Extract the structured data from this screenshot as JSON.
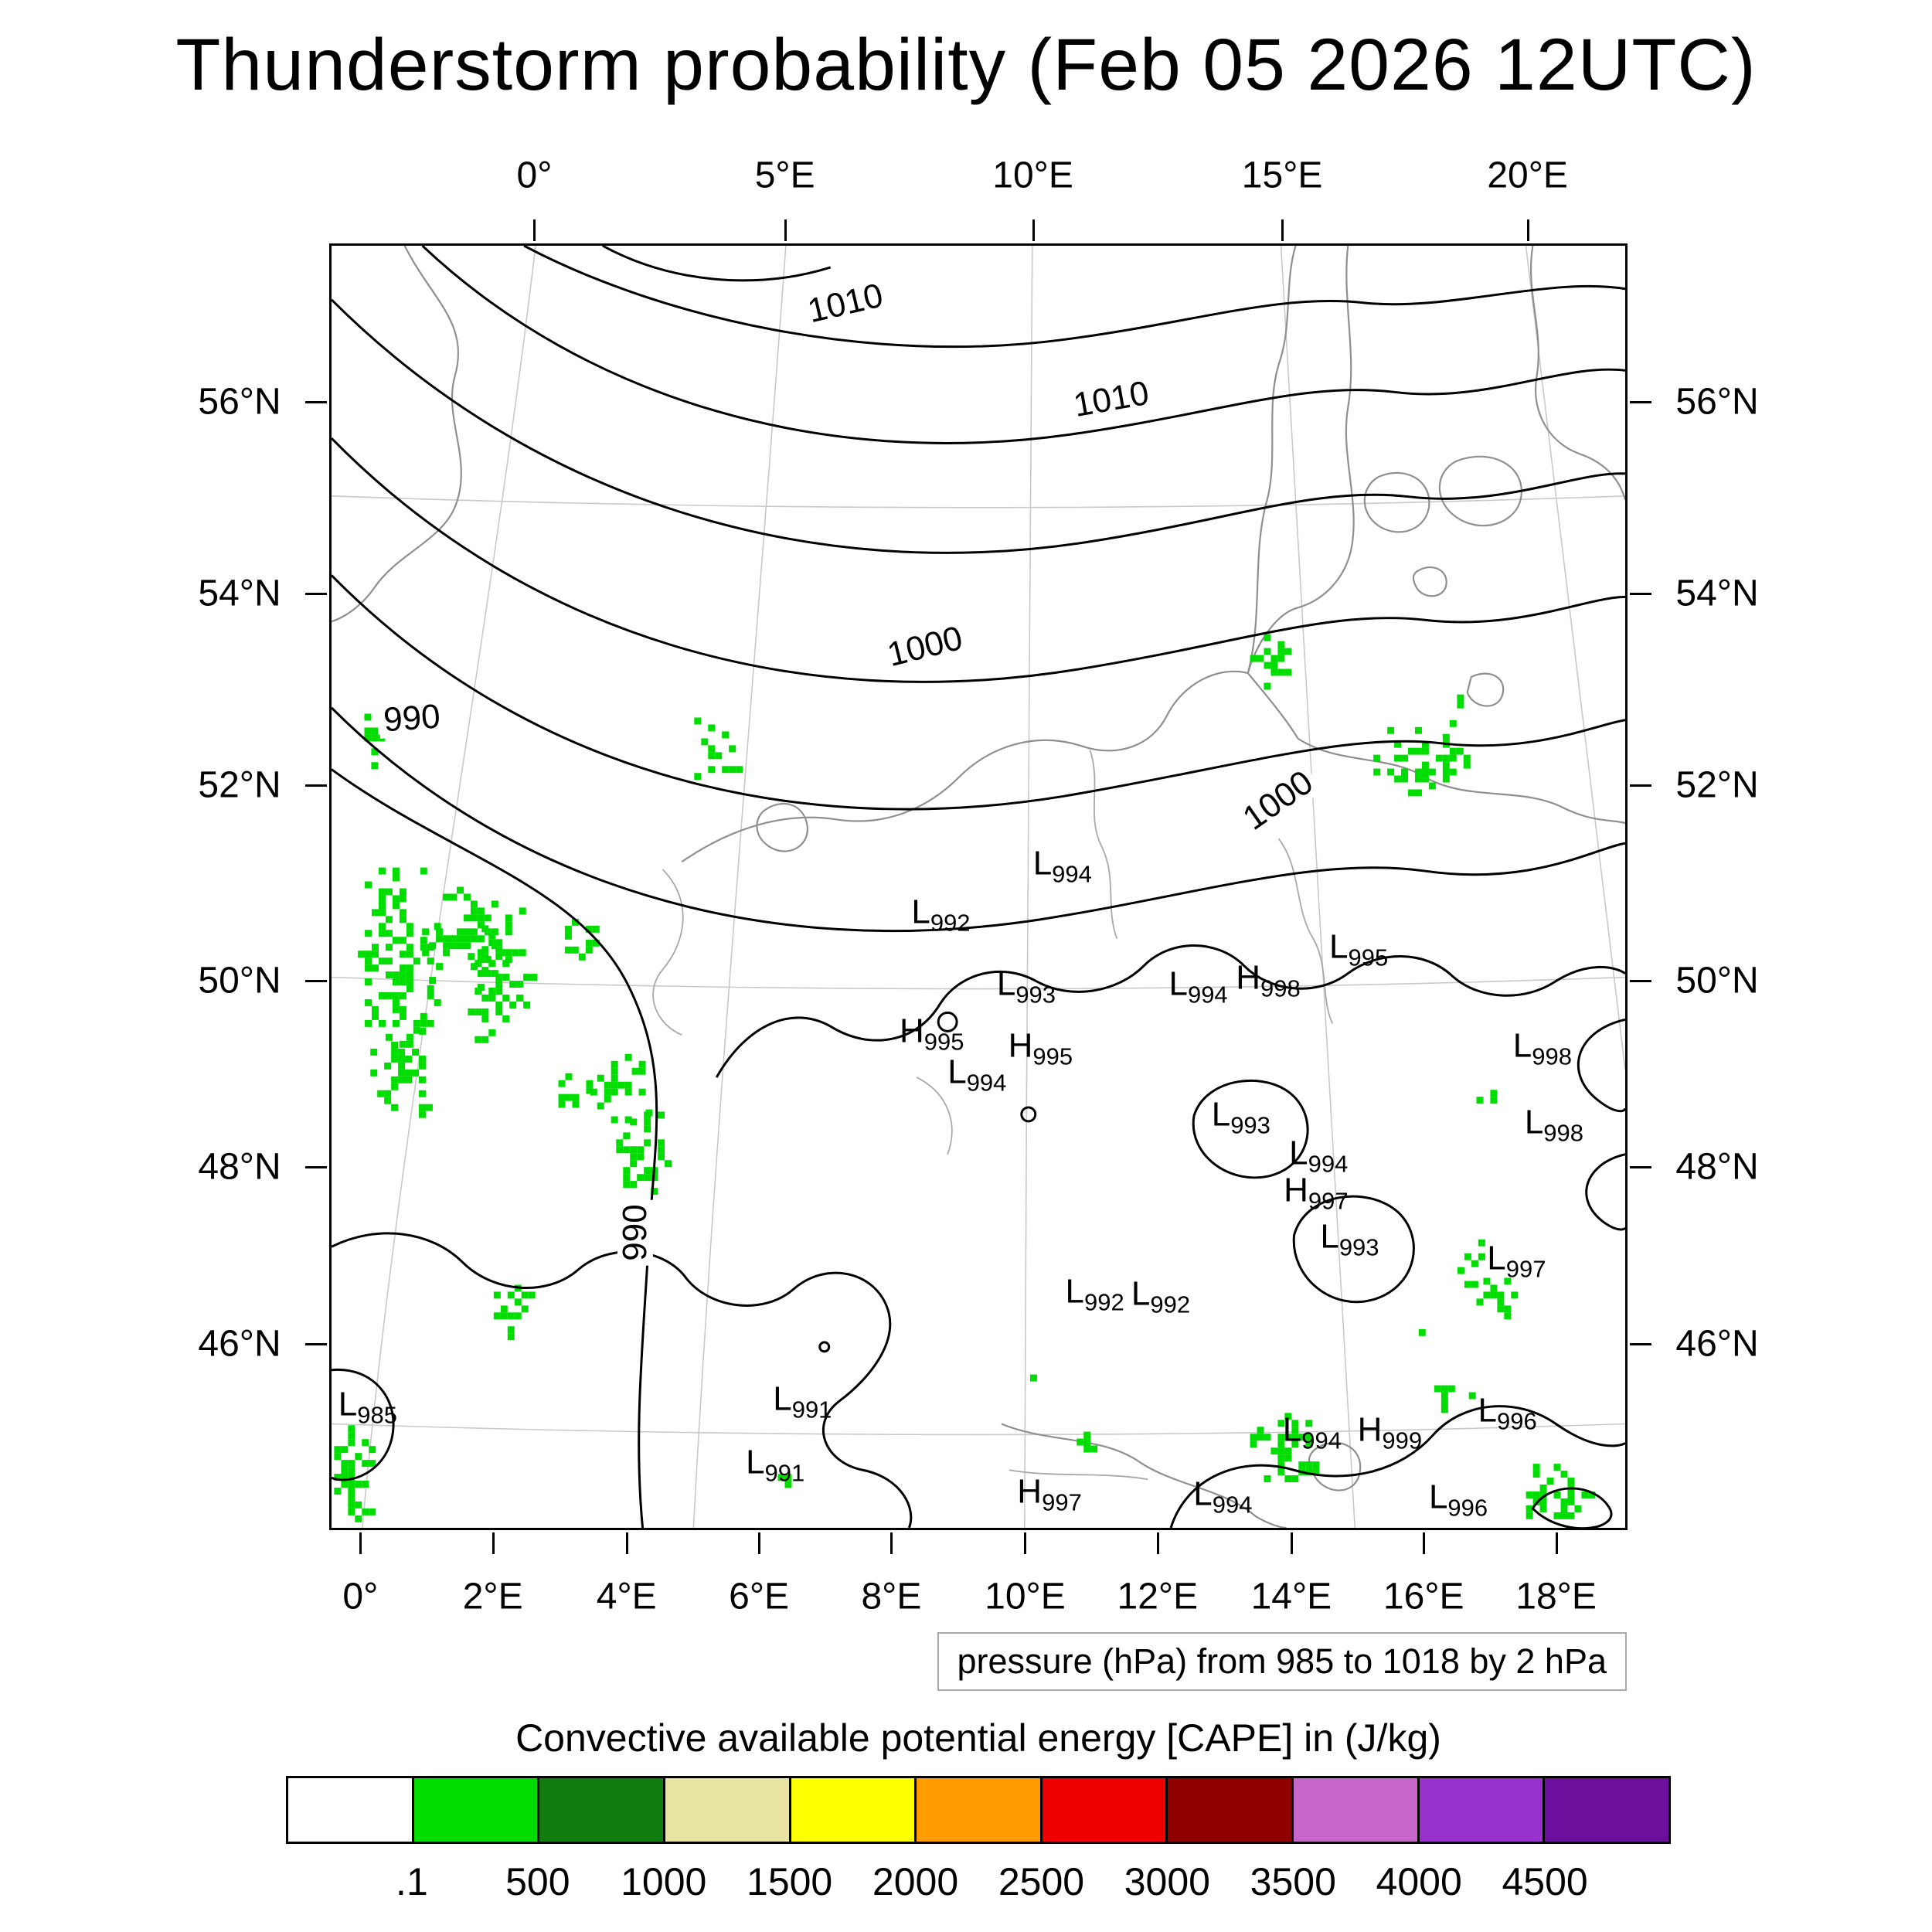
{
  "title": "Thunderstorm probability (Feb 05 2026 12UTC)",
  "axes": {
    "top": [
      {
        "label": "0°",
        "pct": 15.8
      },
      {
        "label": "5°E",
        "pct": 35.1
      },
      {
        "label": "10°E",
        "pct": 54.2
      },
      {
        "label": "15°E",
        "pct": 73.4
      },
      {
        "label": "20°E",
        "pct": 92.3
      }
    ],
    "bottom": [
      {
        "label": "0°",
        "pct": 2.4
      },
      {
        "label": "2°E",
        "pct": 12.6
      },
      {
        "label": "4°E",
        "pct": 22.9
      },
      {
        "label": "6°E",
        "pct": 33.1
      },
      {
        "label": "8°E",
        "pct": 43.3
      },
      {
        "label": "10°E",
        "pct": 53.6
      },
      {
        "label": "12°E",
        "pct": 63.8
      },
      {
        "label": "14°E",
        "pct": 74.1
      },
      {
        "label": "16°E",
        "pct": 84.3
      },
      {
        "label": "18°E",
        "pct": 94.5
      }
    ],
    "left": [
      {
        "label": "56°N",
        "pct": 12.3
      },
      {
        "label": "54°N",
        "pct": 27.2
      },
      {
        "label": "52°N",
        "pct": 42.1
      },
      {
        "label": "50°N",
        "pct": 57.3
      },
      {
        "label": "48°N",
        "pct": 71.8
      },
      {
        "label": "46°N",
        "pct": 85.5
      }
    ],
    "right": [
      {
        "label": "56°N",
        "pct": 12.3
      },
      {
        "label": "54°N",
        "pct": 27.2
      },
      {
        "label": "52°N",
        "pct": 42.1
      },
      {
        "label": "50°N",
        "pct": 57.3
      },
      {
        "label": "48°N",
        "pct": 71.8
      },
      {
        "label": "46°N",
        "pct": 85.5
      }
    ]
  },
  "legend": {
    "pressure_note": "pressure (hPa) from 985 to 1018 by 2 hPa"
  },
  "colorbar": {
    "title": "Convective available potential energy [CAPE] in (J/kg)",
    "colors": [
      "#ffffff",
      "#00dd00",
      "#107c10",
      "#e8e4a4",
      "#ffff00",
      "#ff9d00",
      "#ee0000",
      "#8f0000",
      "#c966c9",
      "#9932cc",
      "#6b0f9c"
    ],
    "labels": [
      ".1",
      "500",
      "1000",
      "1500",
      "2000",
      "2500",
      "3000",
      "3500",
      "4000",
      "4500"
    ]
  },
  "chart_data": {
    "type": "heatmap",
    "description": "Surface pressure isobars (hPa) with green shading where CAPE exceeds 0.1 J/kg, over central Europe",
    "map_region": {
      "lon_range": [
        "0°",
        "20°E"
      ],
      "lat_range": [
        "44°N",
        "57°N"
      ]
    },
    "pressure_contours": {
      "unit": "hPa",
      "min": 985,
      "max": 1018,
      "interval": 2,
      "labeled_isobars": [
        990,
        1000,
        1010
      ]
    },
    "cape_color": "#00dd00",
    "contour_labels": [
      {
        "text": "1010",
        "x_pct": 39.7,
        "y_pct": 4.5,
        "rot": -13
      },
      {
        "text": "1010",
        "x_pct": 60.3,
        "y_pct": 12.0,
        "rot": -10
      },
      {
        "text": "1000",
        "x_pct": 45.9,
        "y_pct": 31.3,
        "rot": -14
      },
      {
        "text": "990",
        "x_pct": 6.2,
        "y_pct": 36.9,
        "rot": -4
      },
      {
        "text": "1000",
        "x_pct": 73.2,
        "y_pct": 43.3,
        "rot": -35
      },
      {
        "text": "990",
        "x_pct": 23.5,
        "y_pct": 77.0,
        "rot": -90
      }
    ],
    "pressure_centers": [
      {
        "kind": "L",
        "value": 994,
        "x_pct": 56.5,
        "y_pct": 48.4
      },
      {
        "kind": "L",
        "value": 992,
        "x_pct": 47.1,
        "y_pct": 52.2
      },
      {
        "kind": "L",
        "value": 993,
        "x_pct": 53.7,
        "y_pct": 57.8
      },
      {
        "kind": "L",
        "value": 994,
        "x_pct": 67.0,
        "y_pct": 57.8
      },
      {
        "kind": "H",
        "value": 998,
        "x_pct": 72.4,
        "y_pct": 57.3
      },
      {
        "kind": "L",
        "value": 995,
        "x_pct": 79.4,
        "y_pct": 54.9
      },
      {
        "kind": "H",
        "value": 995,
        "x_pct": 46.4,
        "y_pct": 61.5
      },
      {
        "kind": "H",
        "value": 995,
        "x_pct": 54.8,
        "y_pct": 62.6
      },
      {
        "kind": "L",
        "value": 994,
        "x_pct": 49.9,
        "y_pct": 64.7
      },
      {
        "kind": "L",
        "value": 993,
        "x_pct": 70.3,
        "y_pct": 68.0
      },
      {
        "kind": "L",
        "value": 994,
        "x_pct": 76.3,
        "y_pct": 71.0
      },
      {
        "kind": "H",
        "value": 997,
        "x_pct": 76.1,
        "y_pct": 73.9
      },
      {
        "kind": "L",
        "value": 993,
        "x_pct": 78.7,
        "y_pct": 77.5
      },
      {
        "kind": "L",
        "value": 998,
        "x_pct": 93.6,
        "y_pct": 62.6
      },
      {
        "kind": "L",
        "value": 998,
        "x_pct": 94.5,
        "y_pct": 68.6
      },
      {
        "kind": "L",
        "value": 997,
        "x_pct": 91.6,
        "y_pct": 79.2
      },
      {
        "kind": "L",
        "value": 992,
        "x_pct": 59.0,
        "y_pct": 81.8
      },
      {
        "kind": "L",
        "value": 992,
        "x_pct": 64.1,
        "y_pct": 82.0
      },
      {
        "kind": "L",
        "value": 991,
        "x_pct": 36.4,
        "y_pct": 90.2
      },
      {
        "kind": "L",
        "value": 991,
        "x_pct": 34.3,
        "y_pct": 95.1
      },
      {
        "kind": "L",
        "value": 985,
        "x_pct": 2.8,
        "y_pct": 90.6
      },
      {
        "kind": "L",
        "value": 994,
        "x_pct": 75.8,
        "y_pct": 92.6
      },
      {
        "kind": "H",
        "value": 999,
        "x_pct": 81.8,
        "y_pct": 92.6
      },
      {
        "kind": "L",
        "value": 996,
        "x_pct": 90.9,
        "y_pct": 91.1
      },
      {
        "kind": "H",
        "value": 997,
        "x_pct": 55.5,
        "y_pct": 97.4
      },
      {
        "kind": "L",
        "value": 994,
        "x_pct": 68.9,
        "y_pct": 97.6
      },
      {
        "kind": "L",
        "value": 996,
        "x_pct": 87.1,
        "y_pct": 97.8
      }
    ],
    "cape_patches": [
      {
        "x": 1.5,
        "y": 48.5,
        "w": 7,
        "h": 14,
        "density": 0.55
      },
      {
        "x": 7,
        "y": 50,
        "w": 8,
        "h": 8,
        "density": 0.5
      },
      {
        "x": 10,
        "y": 53,
        "w": 6,
        "h": 9,
        "density": 0.45
      },
      {
        "x": 17.5,
        "y": 52.5,
        "w": 3,
        "h": 4,
        "density": 0.5
      },
      {
        "x": 3,
        "y": 61,
        "w": 5,
        "h": 7,
        "density": 0.5
      },
      {
        "x": 20,
        "y": 62.5,
        "w": 5,
        "h": 6,
        "density": 0.5
      },
      {
        "x": 22,
        "y": 67,
        "w": 4.5,
        "h": 7,
        "density": 0.5
      },
      {
        "x": 17,
        "y": 64,
        "w": 3,
        "h": 5,
        "density": 0.45
      },
      {
        "x": 27.5,
        "y": 36.8,
        "w": 4.5,
        "h": 6,
        "density": 0.4
      },
      {
        "x": 2,
        "y": 36.5,
        "w": 2,
        "h": 4.5,
        "density": 0.5
      },
      {
        "x": 12,
        "y": 80.5,
        "w": 4,
        "h": 5,
        "density": 0.55
      },
      {
        "x": 71,
        "y": 30.3,
        "w": 3.2,
        "h": 4.5,
        "density": 0.6
      },
      {
        "x": 80,
        "y": 37,
        "w": 8.5,
        "h": 6,
        "density": 0.35
      },
      {
        "x": 87,
        "y": 35,
        "w": 1.5,
        "h": 1.5,
        "density": 0.7
      },
      {
        "x": 88.5,
        "y": 65.3,
        "w": 1.4,
        "h": 1.5,
        "density": 0.7
      },
      {
        "x": 86.5,
        "y": 77.5,
        "w": 3,
        "h": 4,
        "density": 0.5
      },
      {
        "x": 88.5,
        "y": 80.5,
        "w": 3,
        "h": 4,
        "density": 0.5
      },
      {
        "x": 83.5,
        "y": 84.5,
        "w": 1.2,
        "h": 1.2,
        "density": 0.8
      },
      {
        "x": 84.7,
        "y": 87.8,
        "w": 3.5,
        "h": 3.2,
        "density": 0.55
      },
      {
        "x": 71,
        "y": 90.5,
        "w": 5.5,
        "h": 6,
        "density": 0.5
      },
      {
        "x": 91.8,
        "y": 95,
        "w": 6,
        "h": 4.8,
        "density": 0.5
      },
      {
        "x": 0.2,
        "y": 92,
        "w": 3,
        "h": 7.8,
        "density": 0.6
      },
      {
        "x": 54,
        "y": 87.5,
        "w": 1,
        "h": 1,
        "density": 0.9
      },
      {
        "x": 57.6,
        "y": 92.5,
        "w": 1.5,
        "h": 2.2,
        "density": 0.7
      },
      {
        "x": 34.5,
        "y": 95.8,
        "w": 1.3,
        "h": 1.2,
        "density": 0.8
      }
    ]
  }
}
